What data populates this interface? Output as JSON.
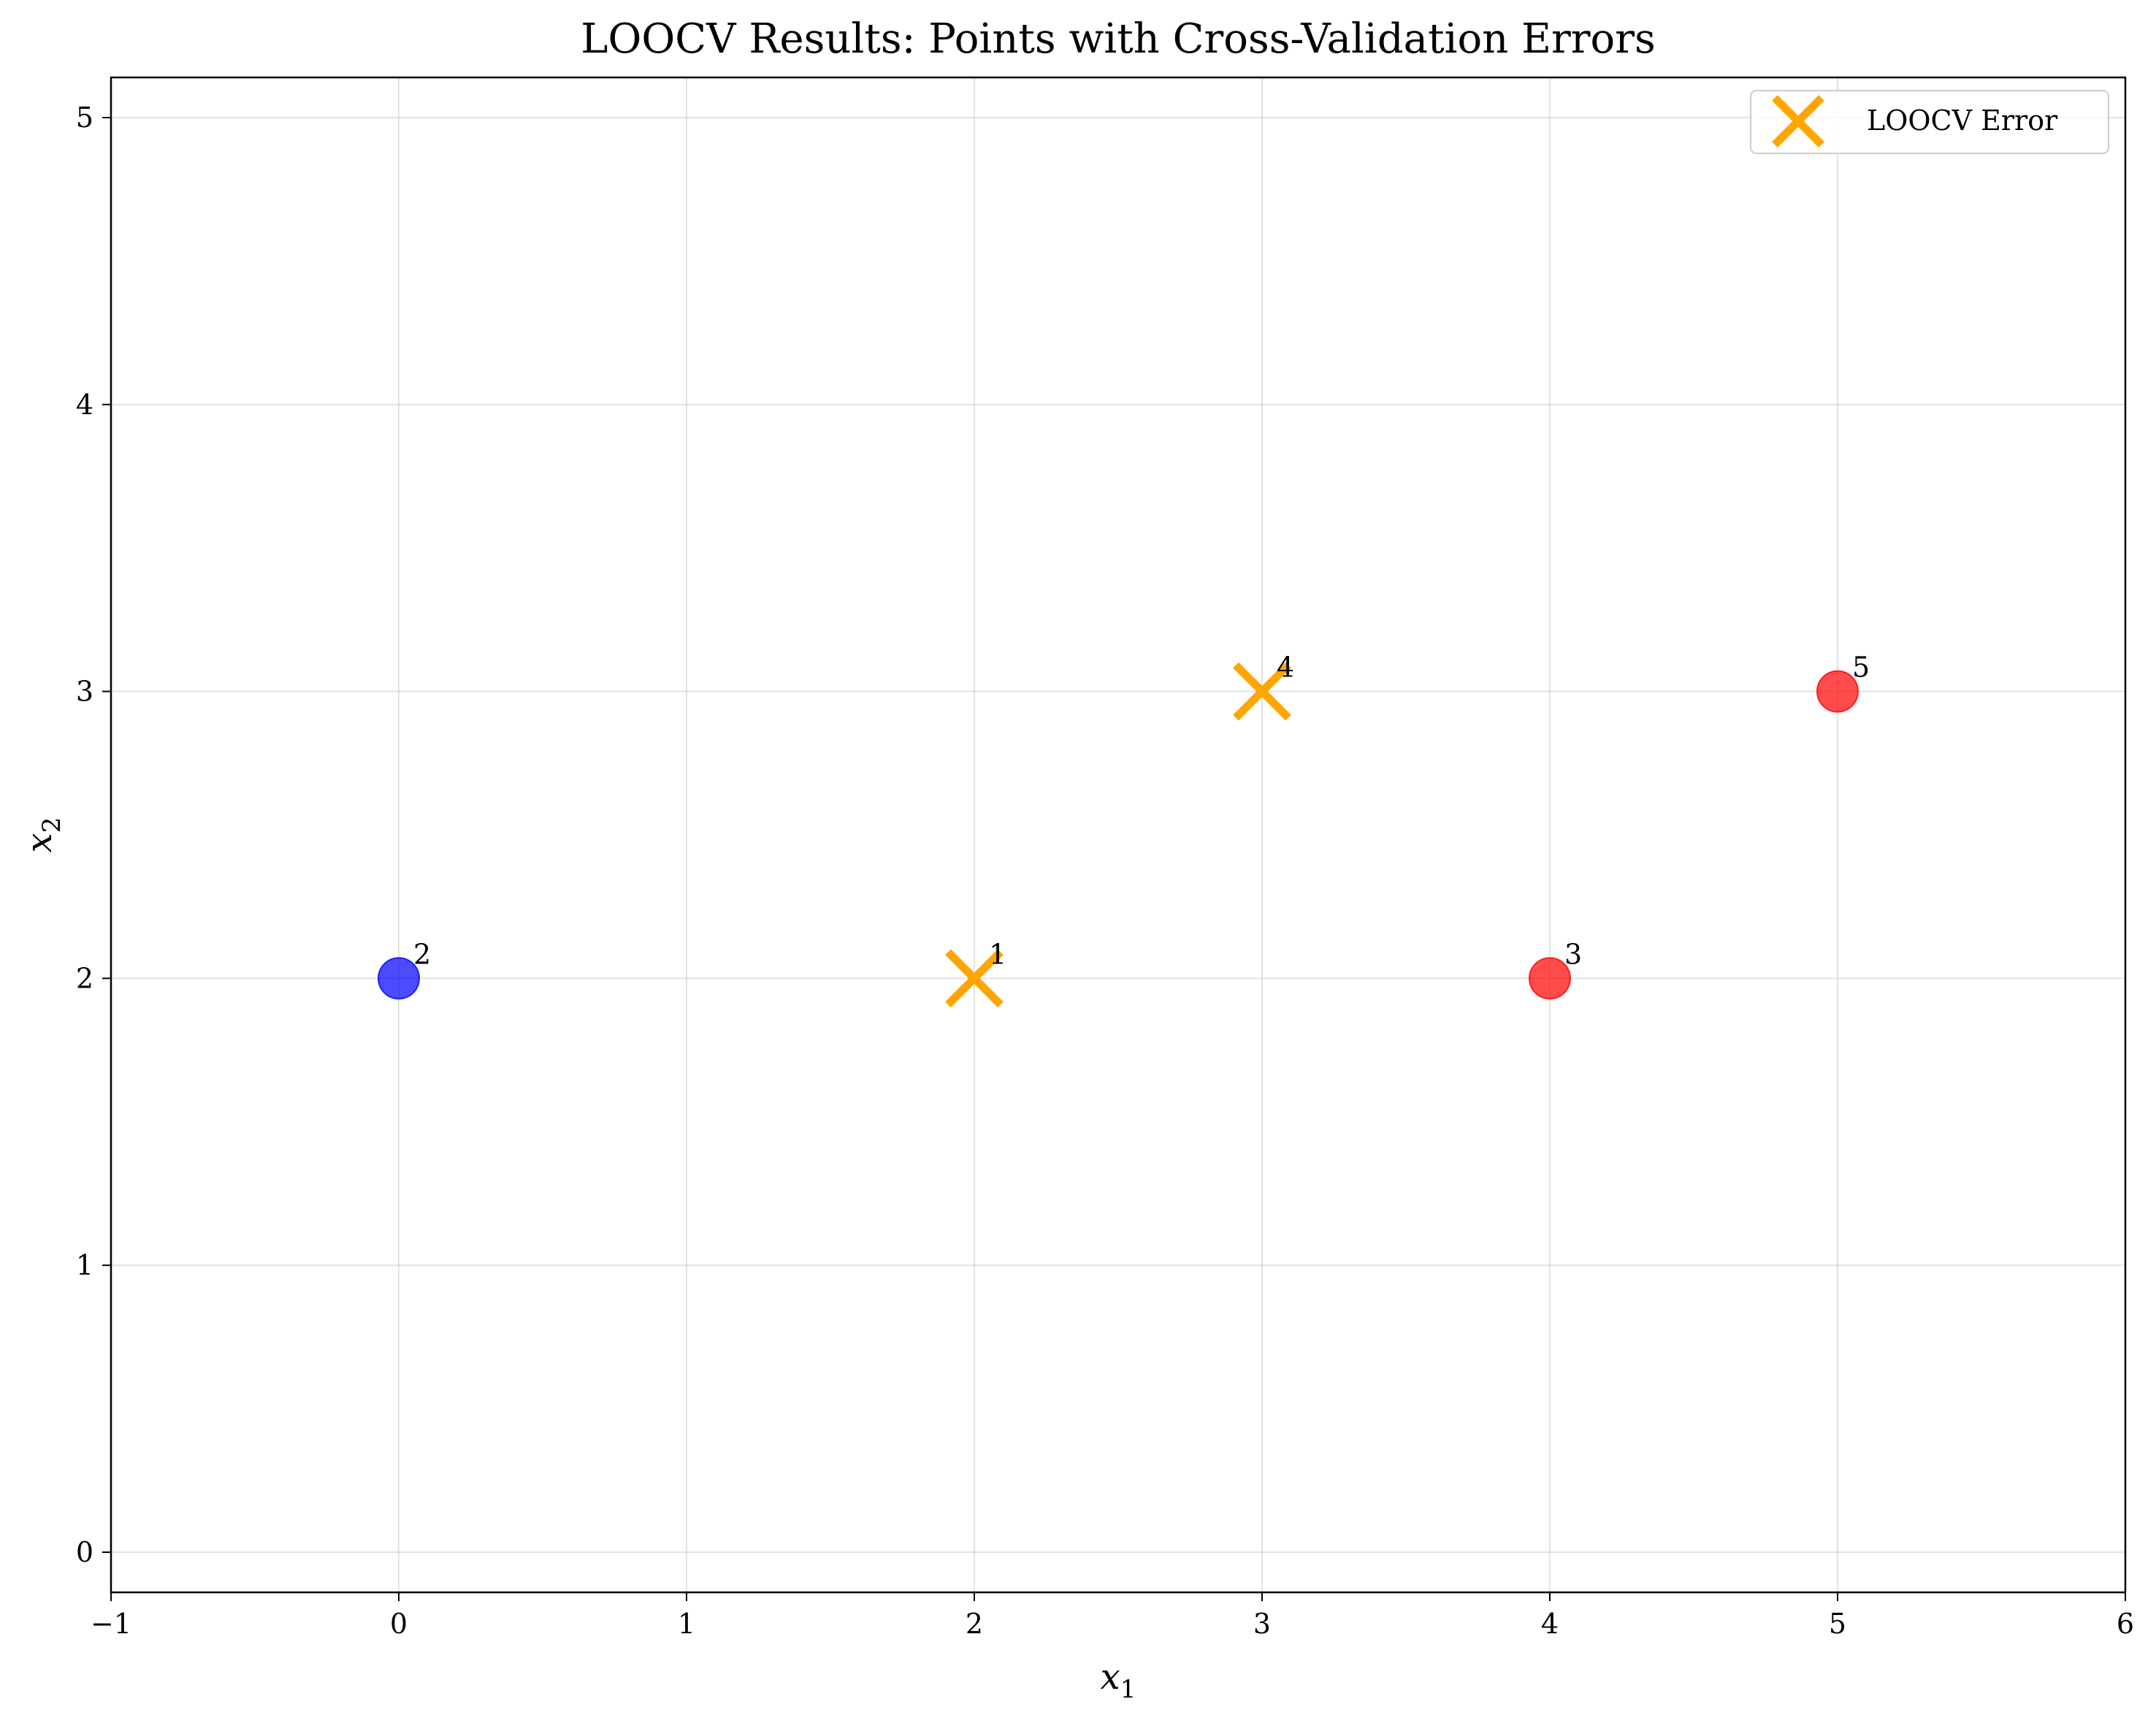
{
  "chart_data": {
    "type": "scatter",
    "title": "LOOCV Results: Points with Cross-Validation Errors",
    "xlabel": "x1",
    "ylabel": "x2",
    "xlim": [
      -1,
      6
    ],
    "ylim": [
      -0.14,
      5.14
    ],
    "xticks": [
      -1,
      0,
      1,
      2,
      3,
      4,
      5,
      6
    ],
    "yticks": [
      0,
      1,
      2,
      3,
      4,
      5
    ],
    "xtick_labels": [
      "−1",
      "0",
      "1",
      "2",
      "3",
      "4",
      "5",
      "6"
    ],
    "ytick_labels": [
      "0",
      "1",
      "2",
      "3",
      "4",
      "5"
    ],
    "grid": true,
    "legend_position": "top-right",
    "legend": [
      {
        "label": "LOOCV Error",
        "marker": "x",
        "color": "#FFA500"
      }
    ],
    "points": [
      {
        "id": "1",
        "x": 2,
        "y": 2,
        "marker": "x",
        "color": "#FFA500"
      },
      {
        "id": "2",
        "x": 0,
        "y": 2,
        "marker": "circle",
        "color": "#0000FF"
      },
      {
        "id": "3",
        "x": 4,
        "y": 2,
        "marker": "circle",
        "color": "#FF0000"
      },
      {
        "id": "4",
        "x": 3,
        "y": 3,
        "marker": "x",
        "color": "#FFA500"
      },
      {
        "id": "5",
        "x": 5,
        "y": 3,
        "marker": "circle",
        "color": "#FF0000"
      }
    ]
  }
}
